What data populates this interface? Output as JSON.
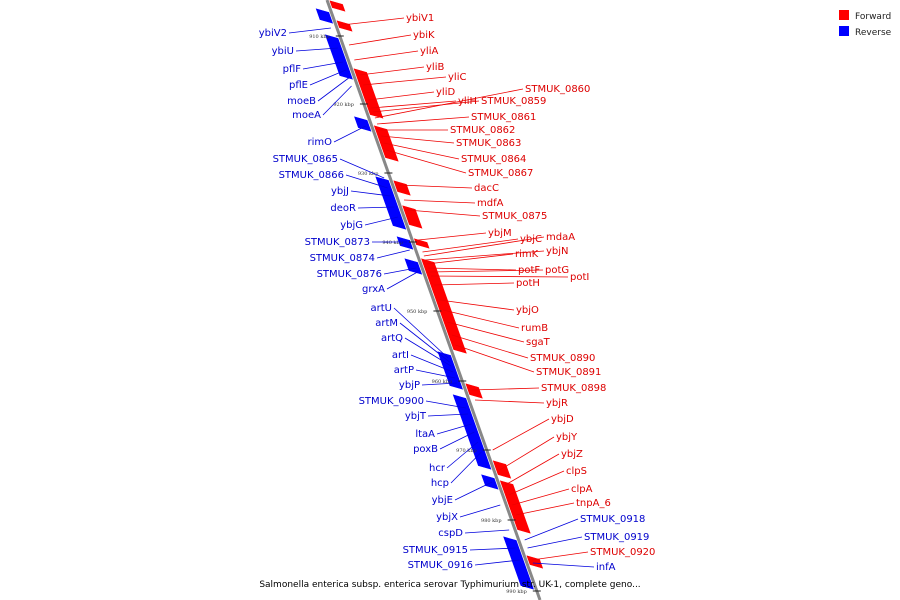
{
  "legend": {
    "forward_label": "Forward",
    "reverse_label": "Reverse",
    "forward_color": "#ff0000",
    "reverse_color": "#0000ff"
  },
  "caption": "Salmonella enterica subsp. enterica serovar Typhimurium str. UK-1, complete geno...",
  "ticks": [
    "910 kbp",
    "920 kbp",
    "930 kbp",
    "940 kbp",
    "950 kbp",
    "960 kbp",
    "970 kbp",
    "980 kbp",
    "990 kbp"
  ],
  "forward_genes": [
    "ybiV1",
    "ybiK",
    "yliA",
    "yliB",
    "yliC",
    "yliD",
    "yliH",
    "STMUK_0859",
    "STMUK_0860",
    "STMUK_0861",
    "STMUK_0862",
    "STMUK_0863",
    "STMUK_0864",
    "STMUK_0867",
    "dacC",
    "mdfA",
    "STMUK_0875",
    "ybjM",
    "ybjC",
    "mdaA",
    "ybjN",
    "rimK",
    "potF",
    "potG",
    "potI",
    "potH",
    "ybjO",
    "rumB",
    "sgaT",
    "STMUK_0890",
    "STMUK_0891",
    "STMUK_0898",
    "ybjR",
    "ybjD",
    "ybjY",
    "ybjZ",
    "clpS",
    "clpA",
    "tnpA_6",
    "STMUK_0920"
  ],
  "reverse_genes": [
    "ybiV2",
    "ybiU",
    "pflF",
    "pflE",
    "moeB",
    "moeA",
    "rimO",
    "STMUK_0865",
    "STMUK_0866",
    "ybjJ",
    "deoR",
    "ybjG",
    "STMUK_0873",
    "STMUK_0874",
    "STMUK_0876",
    "grxA",
    "artU",
    "artM",
    "artQ",
    "artI",
    "artP",
    "ybjP",
    "STMUK_0900",
    "ybjT",
    "ltaA",
    "poxB",
    "hcr",
    "hcp",
    "ybjE",
    "ybjX",
    "cspD",
    "STMUK_0915",
    "STMUK_0916",
    "STMUK_0918",
    "STMUK_0919",
    "infA"
  ]
}
